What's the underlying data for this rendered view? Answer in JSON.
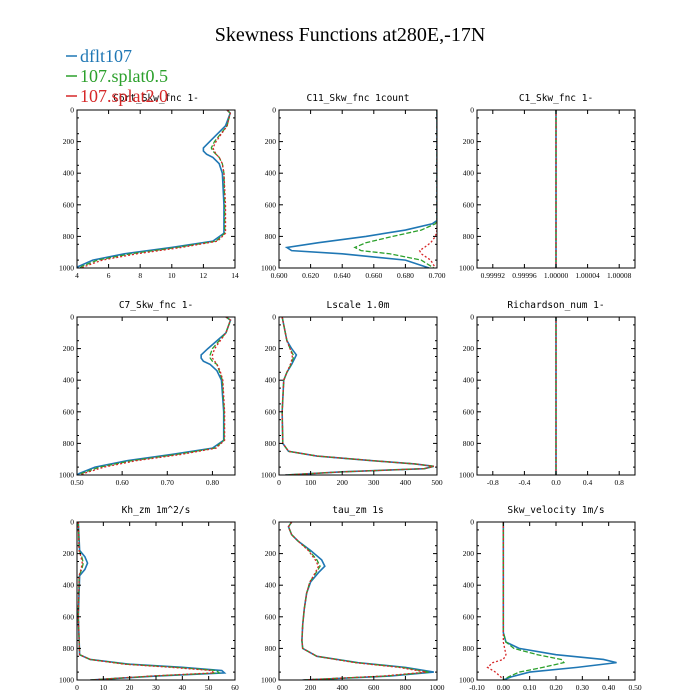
{
  "figure": {
    "title": "Skewness Functions at280E,-17N"
  },
  "legend": [
    {
      "name": "dflt107",
      "color": "#1f77b4",
      "dash": "solid"
    },
    {
      "name": "107.splat0.5",
      "color": "#2ca02c",
      "dash": "dashed"
    },
    {
      "name": "107.splat2.0",
      "color": "#d62728",
      "dash": "dotted"
    }
  ],
  "chart_data": [
    {
      "type": "line",
      "title": "C6rt_Skw_fnc 1-",
      "xlim": [
        4,
        14
      ],
      "xticks": [
        4,
        6,
        8,
        10,
        12,
        14
      ],
      "ylim": [
        1000,
        0
      ],
      "yticks": [
        0,
        200,
        400,
        600,
        800,
        1000
      ],
      "y": [
        0,
        20,
        100,
        200,
        240,
        260,
        280,
        300,
        340,
        400,
        600,
        780,
        830,
        870,
        910,
        950,
        990,
        1000
      ],
      "series": [
        {
          "values": [
            13.5,
            13.7,
            13.4,
            12.4,
            12.0,
            12.0,
            12.2,
            12.6,
            13.0,
            13.2,
            13.3,
            13.3,
            12.6,
            10.0,
            7.0,
            5.0,
            4.1,
            4.0
          ]
        },
        {
          "values": [
            13.5,
            13.7,
            13.5,
            12.7,
            12.5,
            12.6,
            12.8,
            13.0,
            13.2,
            13.3,
            13.35,
            13.35,
            12.8,
            10.3,
            7.4,
            5.3,
            4.3,
            4.2
          ]
        },
        {
          "values": [
            13.5,
            13.7,
            13.5,
            12.8,
            12.6,
            12.7,
            12.8,
            13.0,
            13.2,
            13.3,
            13.4,
            13.4,
            12.9,
            10.6,
            7.8,
            5.6,
            4.5,
            4.3
          ]
        }
      ]
    },
    {
      "type": "line",
      "title": "C11_Skw_fnc 1count",
      "xlim": [
        0.6,
        0.7
      ],
      "xticks": [
        0.6,
        0.62,
        0.64,
        0.66,
        0.68,
        0.7
      ],
      "xticklabels": [
        "0.600",
        "0.620",
        "0.640",
        "0.660",
        "0.680",
        "0.700"
      ],
      "ylim": [
        1000,
        0
      ],
      "yticks": [
        0,
        200,
        400,
        600,
        800,
        1000
      ],
      "y": [
        0,
        100,
        200,
        400,
        600,
        700,
        720,
        760,
        800,
        840,
        870,
        890,
        910,
        950,
        1000
      ],
      "series": [
        {
          "values": [
            0.7,
            0.7,
            0.7,
            0.7,
            0.7,
            0.7,
            0.697,
            0.68,
            0.655,
            0.625,
            0.605,
            0.608,
            0.64,
            0.68,
            0.695
          ]
        },
        {
          "values": [
            0.7,
            0.7,
            0.7,
            0.7,
            0.7,
            0.7,
            0.699,
            0.69,
            0.672,
            0.655,
            0.648,
            0.652,
            0.67,
            0.69,
            0.698
          ]
        },
        {
          "values": [
            0.7,
            0.7,
            0.7,
            0.7,
            0.7,
            0.7,
            0.7,
            0.7,
            0.699,
            0.696,
            0.692,
            0.689,
            0.69,
            0.696,
            0.699
          ]
        }
      ]
    },
    {
      "type": "line",
      "title": "C1_Skw_fnc 1-",
      "xlim": [
        0.9999,
        1.0001
      ],
      "xticks": [
        0.99992,
        0.99996,
        1.0,
        1.00004,
        1.00008
      ],
      "xticklabels": [
        "0.99992",
        "0.99996",
        "1.00000",
        "1.00004",
        "1.00008"
      ],
      "ylim": [
        1000,
        0
      ],
      "yticks": [
        0,
        200,
        400,
        600,
        800,
        1000
      ],
      "y": [
        0,
        1000
      ],
      "series": [
        {
          "values": [
            1.0,
            1.0
          ]
        },
        {
          "values": [
            1.0,
            1.0
          ]
        },
        {
          "values": [
            1.0,
            1.0
          ]
        }
      ]
    },
    {
      "type": "line",
      "title": "C7_Skw_fnc 1-",
      "xlim": [
        0.5,
        0.85
      ],
      "xticks": [
        0.5,
        0.6,
        0.7,
        0.8
      ],
      "xticklabels": [
        "0.50",
        "0.60",
        "0.70",
        "0.80"
      ],
      "ylim": [
        1000,
        0
      ],
      "yticks": [
        0,
        200,
        400,
        600,
        800,
        1000
      ],
      "y": [
        0,
        20,
        100,
        200,
        240,
        260,
        280,
        300,
        340,
        400,
        600,
        780,
        830,
        870,
        910,
        950,
        990,
        1000
      ],
      "series": [
        {
          "values": [
            0.83,
            0.84,
            0.83,
            0.79,
            0.775,
            0.775,
            0.78,
            0.795,
            0.81,
            0.82,
            0.825,
            0.825,
            0.8,
            0.71,
            0.61,
            0.54,
            0.505,
            0.5
          ]
        },
        {
          "values": [
            0.83,
            0.84,
            0.83,
            0.8,
            0.795,
            0.795,
            0.8,
            0.81,
            0.815,
            0.822,
            0.826,
            0.826,
            0.805,
            0.72,
            0.62,
            0.55,
            0.51,
            0.505
          ]
        },
        {
          "values": [
            0.83,
            0.84,
            0.83,
            0.805,
            0.8,
            0.8,
            0.805,
            0.81,
            0.817,
            0.823,
            0.827,
            0.827,
            0.808,
            0.73,
            0.63,
            0.56,
            0.515,
            0.51
          ]
        }
      ]
    },
    {
      "type": "line",
      "title": "Lscale 1.0m",
      "xlim": [
        0,
        500
      ],
      "xticks": [
        0,
        100,
        200,
        300,
        400,
        500
      ],
      "ylim": [
        1000,
        0
      ],
      "yticks": [
        0,
        200,
        400,
        600,
        800,
        1000
      ],
      "y": [
        0,
        50,
        150,
        200,
        240,
        260,
        300,
        350,
        400,
        600,
        800,
        850,
        880,
        910,
        930,
        945,
        960,
        980,
        1000
      ],
      "series": [
        {
          "values": [
            10,
            15,
            25,
            40,
            55,
            50,
            40,
            25,
            15,
            10,
            12,
            30,
            120,
            300,
            430,
            490,
            460,
            200,
            20
          ]
        },
        {
          "values": [
            10,
            15,
            25,
            35,
            45,
            45,
            38,
            25,
            15,
            10,
            12,
            30,
            120,
            300,
            430,
            490,
            460,
            200,
            20
          ]
        },
        {
          "values": [
            10,
            15,
            25,
            35,
            42,
            42,
            36,
            25,
            15,
            10,
            12,
            30,
            120,
            300,
            430,
            490,
            460,
            200,
            20
          ]
        }
      ]
    },
    {
      "type": "line",
      "title": "Richardson_num 1-",
      "xlim": [
        -1.0,
        1.0
      ],
      "xticks": [
        -0.8,
        -0.4,
        0.0,
        0.4,
        0.8
      ],
      "xticklabels": [
        "-0.8",
        "-0.4",
        "0.0",
        "0.4",
        "0.8"
      ],
      "ylim": [
        1000,
        0
      ],
      "yticks": [
        0,
        200,
        400,
        600,
        800,
        1000
      ],
      "y": [
        0,
        1000
      ],
      "series": [
        {
          "values": [
            0,
            0
          ]
        },
        {
          "values": [
            0,
            0
          ]
        },
        {
          "values": [
            0,
            0
          ]
        }
      ]
    },
    {
      "type": "line",
      "title": "Kh_zm 1m^2/s",
      "xlim": [
        0,
        60
      ],
      "xticks": [
        0,
        10,
        20,
        30,
        40,
        50,
        60
      ],
      "ylim": [
        1000,
        0
      ],
      "yticks": [
        0,
        200,
        400,
        600,
        800,
        1000
      ],
      "y": [
        0,
        180,
        220,
        260,
        300,
        340,
        600,
        840,
        870,
        900,
        920,
        940,
        955,
        975,
        1000
      ],
      "series": [
        {
          "values": [
            0.5,
            1,
            3,
            4,
            3,
            1,
            0.5,
            1,
            5,
            20,
            40,
            55,
            56,
            30,
            5
          ]
        },
        {
          "values": [
            0.5,
            0.8,
            1.8,
            2.4,
            1.8,
            0.8,
            0.5,
            1,
            5,
            19,
            38,
            53,
            54,
            29,
            5
          ]
        },
        {
          "values": [
            0.5,
            0.8,
            1.5,
            2.0,
            1.5,
            0.8,
            0.5,
            1,
            5,
            18,
            36,
            51,
            52,
            28,
            5
          ]
        }
      ]
    },
    {
      "type": "line",
      "title": "tau_zm 1s",
      "xlim": [
        0,
        1000
      ],
      "xticks": [
        0,
        200,
        400,
        600,
        800,
        1000
      ],
      "ylim": [
        1000,
        0
      ],
      "yticks": [
        0,
        200,
        400,
        600,
        800,
        1000
      ],
      "y": [
        0,
        30,
        80,
        120,
        180,
        240,
        280,
        320,
        380,
        450,
        550,
        650,
        750,
        800,
        850,
        890,
        920,
        950,
        975,
        1000
      ],
      "series": [
        {
          "values": [
            80,
            60,
            80,
            120,
            200,
            270,
            290,
            250,
            200,
            175,
            160,
            150,
            145,
            150,
            240,
            500,
            800,
            980,
            700,
            150
          ]
        },
        {
          "values": [
            80,
            60,
            80,
            120,
            190,
            240,
            260,
            235,
            195,
            175,
            160,
            150,
            145,
            150,
            240,
            490,
            780,
            950,
            680,
            150
          ]
        },
        {
          "values": [
            80,
            60,
            80,
            120,
            185,
            230,
            250,
            230,
            195,
            175,
            160,
            150,
            145,
            150,
            240,
            480,
            760,
            930,
            660,
            150
          ]
        }
      ]
    },
    {
      "type": "line",
      "title": "Skw_velocity 1m/s",
      "xlim": [
        -0.1,
        0.5
      ],
      "xticks": [
        -0.1,
        0.0,
        0.1,
        0.2,
        0.3,
        0.4,
        0.5
      ],
      "xticklabels": [
        "-0.10",
        "0.00",
        "0.10",
        "0.20",
        "0.30",
        "0.40",
        "0.50"
      ],
      "ylim": [
        1000,
        0
      ],
      "yticks": [
        0,
        200,
        400,
        600,
        800,
        1000
      ],
      "y": [
        0,
        100,
        400,
        700,
        760,
        800,
        840,
        870,
        890,
        920,
        950,
        980,
        1000
      ],
      "series": [
        {
          "values": [
            0.0,
            0.0,
            0.0,
            0.0,
            0.01,
            0.06,
            0.2,
            0.38,
            0.43,
            0.28,
            0.1,
            0.03,
            0.0
          ]
        },
        {
          "values": [
            0.0,
            0.0,
            0.0,
            0.0,
            0.01,
            0.04,
            0.13,
            0.22,
            0.23,
            0.15,
            0.06,
            0.02,
            0.0
          ]
        },
        {
          "values": [
            0.0,
            0.0,
            0.0,
            0.0,
            0.0,
            0.005,
            0.01,
            0.0,
            -0.04,
            -0.06,
            -0.03,
            -0.01,
            0.0
          ]
        }
      ]
    }
  ]
}
